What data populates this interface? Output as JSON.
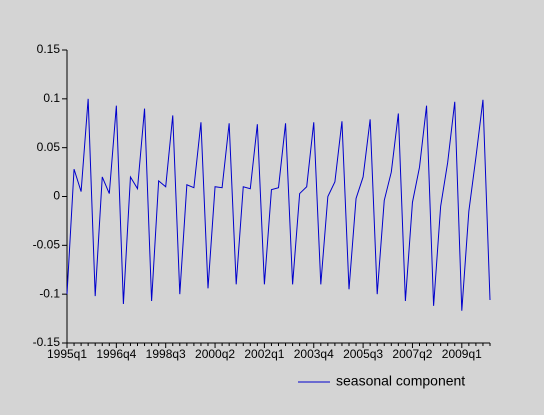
{
  "chart_data": {
    "type": "line",
    "categories": [
      "1995q1",
      null,
      null,
      null,
      null,
      null,
      null,
      "1996q4",
      null,
      null,
      null,
      null,
      null,
      null,
      "1998q3",
      null,
      null,
      null,
      null,
      null,
      null,
      "2000q2",
      null,
      null,
      null,
      null,
      null,
      null,
      "2002q1",
      null,
      null,
      null,
      null,
      null,
      null,
      "2003q4",
      null,
      null,
      null,
      null,
      null,
      null,
      "2005q3",
      null,
      null,
      null,
      null,
      null,
      null,
      "2007q2",
      null,
      null,
      null,
      null,
      null,
      null,
      "2009q1",
      null,
      null,
      null,
      null
    ],
    "series": [
      {
        "name": "seasonal component",
        "color": "#0000cc",
        "values": [
          -0.1,
          0.028,
          0.005,
          0.1,
          -0.102,
          0.02,
          0.003,
          0.093,
          -0.11,
          0.02,
          0.008,
          0.09,
          -0.107,
          0.016,
          0.01,
          0.083,
          -0.1,
          0.012,
          0.009,
          0.076,
          -0.094,
          0.01,
          0.009,
          0.075,
          -0.09,
          0.01,
          0.008,
          0.074,
          -0.09,
          0.007,
          0.009,
          0.075,
          -0.09,
          0.003,
          0.01,
          0.076,
          -0.09,
          0.0,
          0.015,
          0.077,
          -0.095,
          -0.002,
          0.02,
          0.079,
          -0.1,
          -0.004,
          0.025,
          0.085,
          -0.107,
          -0.006,
          0.03,
          0.093,
          -0.112,
          -0.01,
          0.035,
          0.097,
          -0.117,
          -0.015,
          0.04,
          0.099,
          -0.106
        ]
      }
    ],
    "ylim": [
      -0.15,
      0.15
    ],
    "yticks": [
      -0.15,
      -0.1,
      -0.05,
      0,
      0.05,
      0.1,
      0.15
    ],
    "legend": "bottom"
  }
}
